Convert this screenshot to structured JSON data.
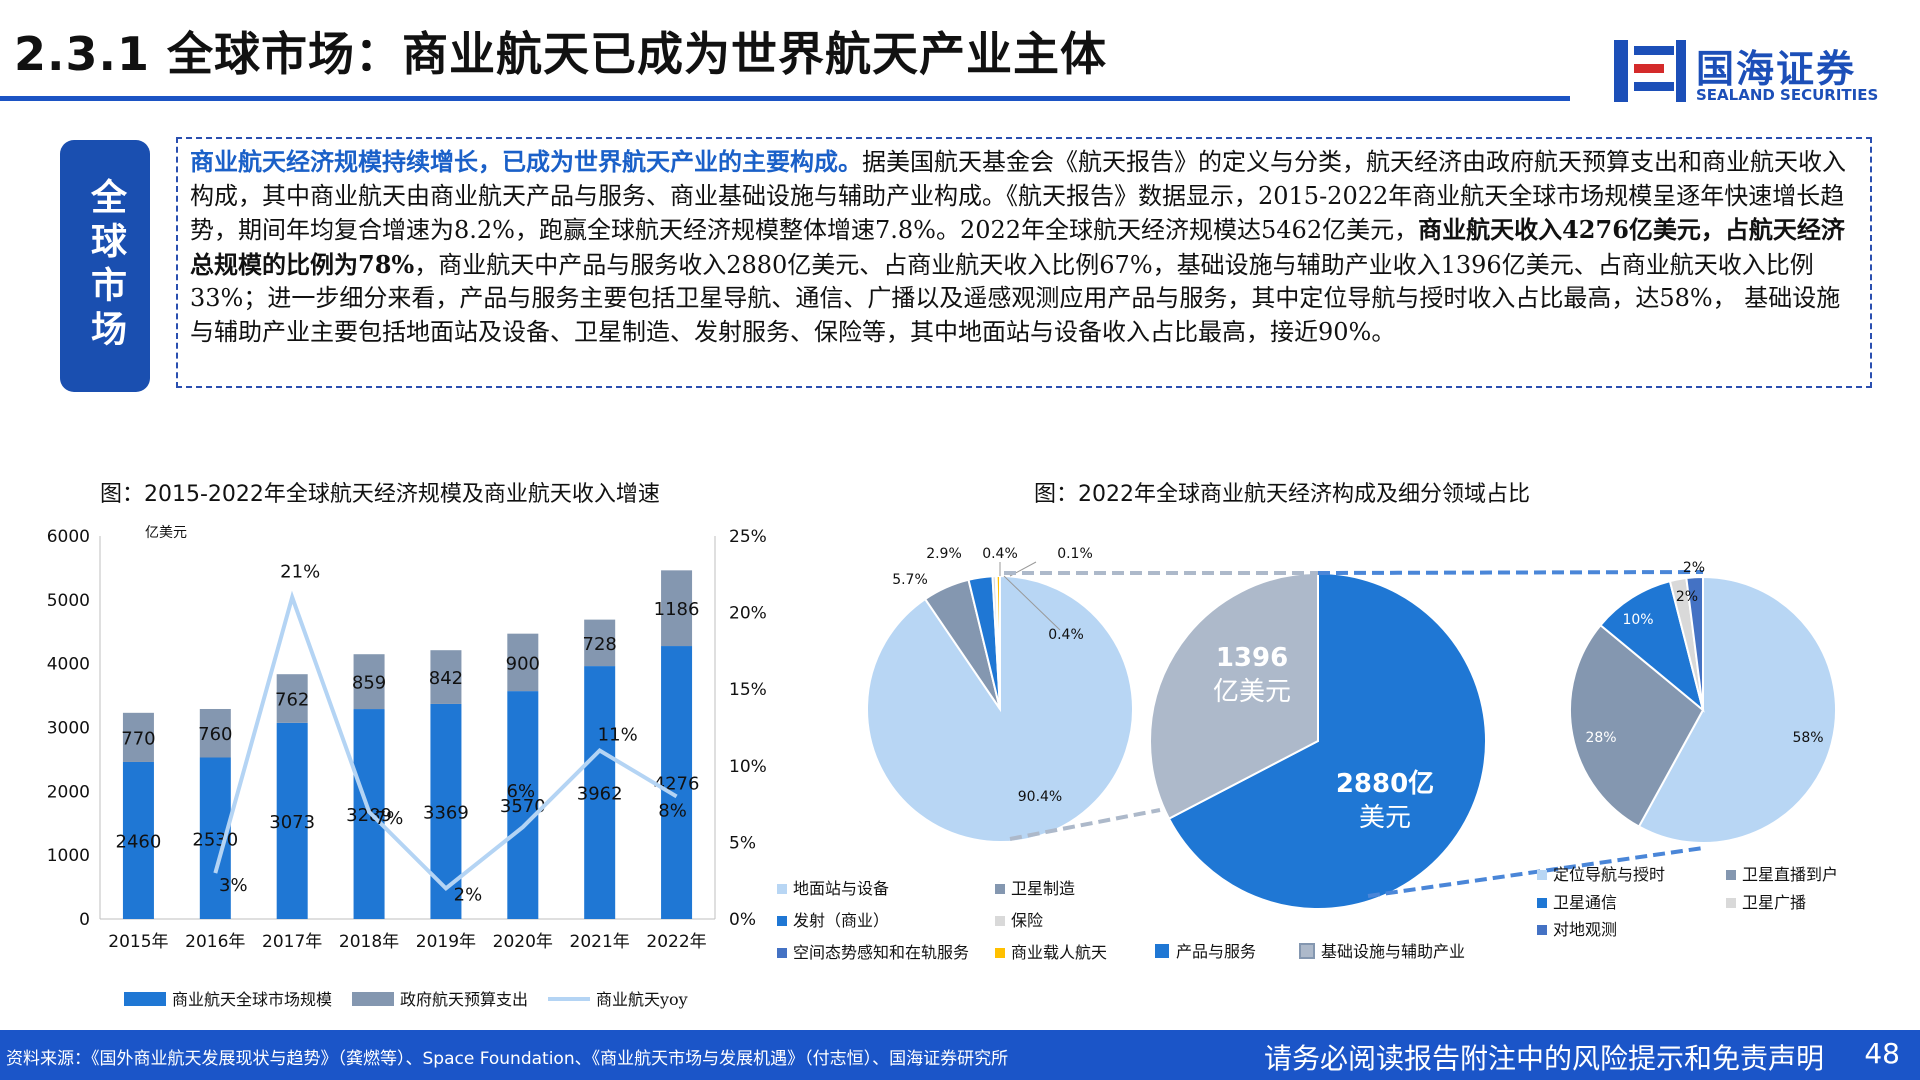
{
  "header": {
    "title": "2.3.1 全球市场：商业航天已成为世界航天产业主体",
    "logo_cn": "国海证券",
    "logo_en": "SEALAND SECURITIES"
  },
  "section": {
    "tab_label": "全球市场",
    "paragraph": {
      "lead": "商业航天经济规模持续增长，已成为世界航天产业的主要构成。",
      "part1": "据美国航天基金会《航天报告》的定义与分类，航天经济由政府航天预算支出和商业航天收入构成，其中商业航天由商业航天产品与服务、商业基础设施与辅助产业构成。《航天报告》数据显示，2015-2022年商业航天全球市场规模呈逐年快速增长趋势，期间年均复合增速为8.2%，跑赢全球航天经济规模整体增速7.8%。2022年全球航天经济规模达5462亿美元，",
      "bold": "商业航天收入4276亿美元，占航天经济总规模的比例为78%",
      "part2": "，商业航天中产品与服务收入2880亿美元、占商业航天收入比例67%，基础设施与辅助产业收入1396亿美元、占商业航天收入比例33%；进一步细分来看，产品与服务主要包括卫星导航、通信、广播以及遥感观测应用产品与服务，其中定位导航与授时收入占比最高，达58%， 基础设施与辅助产业主要包括地面站及设备、卫星制造、发射服务、保险等，其中地面站与设备收入占比最高，接近90%。"
    }
  },
  "chart_left_title": "图：2015-2022年全球航天经济规模及商业航天收入增速",
  "chart_right_title": "图：2022年全球商业航天经济构成及细分领域占比",
  "chart_data": [
    {
      "type": "bar",
      "stacked": true,
      "categories": [
        "2015年",
        "2016年",
        "2017年",
        "2018年",
        "2019年",
        "2020年",
        "2021年",
        "2022年"
      ],
      "unit_label": "亿美元",
      "series": [
        {
          "name": "商业航天全球市场规模",
          "values": [
            2460,
            2530,
            3073,
            3289,
            3369,
            3570,
            3962,
            4276
          ],
          "color": "#1f77d4"
        },
        {
          "name": "政府航天预算支出",
          "values": [
            770,
            760,
            762,
            859,
            842,
            900,
            728,
            1186
          ],
          "color": "#8497b0"
        }
      ],
      "line_series": {
        "name": "商业航天yoy",
        "x": [
          "2016年",
          "2017年",
          "2018年",
          "2019年",
          "2020年",
          "2021年",
          "2022年"
        ],
        "values": [
          3,
          21,
          7,
          2,
          6,
          11,
          8
        ],
        "labels": [
          "3%",
          "21%",
          "7%",
          "2%",
          "6%",
          "11%",
          "8%"
        ],
        "color": "#b4d4f4"
      },
      "y_left": {
        "min": 0,
        "max": 6000,
        "ticks": [
          "0",
          "1000",
          "2000",
          "3000",
          "4000",
          "5000",
          "6000"
        ]
      },
      "y_right": {
        "min": 0,
        "max": 25,
        "ticks": [
          "0%",
          "5%",
          "10%",
          "15%",
          "20%",
          "25%"
        ]
      },
      "legend_position": "bottom"
    },
    {
      "type": "pie",
      "name_hint": "基础设施与辅助产业细分",
      "slices": [
        {
          "label": "地面站与设备",
          "value": 90.4,
          "text": "90.4%",
          "color": "#b8d6f4"
        },
        {
          "label": "卫星制造",
          "value": 5.7,
          "text": "5.7%",
          "color": "#8497b0"
        },
        {
          "label": "发射（商业）",
          "value": 2.9,
          "text": "2.9%",
          "color": "#1f77d4"
        },
        {
          "label": "保险",
          "value": 0.4,
          "text": "0.4%",
          "color": "#d9d9d9"
        },
        {
          "label": "空间态势感知和在轨服务",
          "value": 0.1,
          "text": "0.1%",
          "color": "#4472c4"
        },
        {
          "label": "商业载人航天",
          "value": 0.4,
          "text": "0.4%",
          "color": "#ffc000"
        }
      ]
    },
    {
      "type": "pie",
      "slices": [
        {
          "label": "产品与服务",
          "value": 2880,
          "text1": "2880亿",
          "text2": "美元",
          "color": "#1f77d4"
        },
        {
          "label": "基础设施与辅助产业",
          "value": 1396,
          "text1": "1396",
          "text2": "亿美元",
          "color": "#adb9ca"
        }
      ]
    },
    {
      "type": "pie",
      "slices": [
        {
          "label": "定位导航与授时",
          "value": 58,
          "text": "58%",
          "color": "#b8d6f4"
        },
        {
          "label": "卫星直播到户",
          "value": 28,
          "text": "28%",
          "color": "#8497b0"
        },
        {
          "label": "卫星通信",
          "value": 10,
          "text": "10%",
          "color": "#1f77d4"
        },
        {
          "label": "卫星广播",
          "value": 2,
          "text": "2%",
          "color": "#d9d9d9"
        },
        {
          "label": "对地观测",
          "value": 2,
          "text": "2%",
          "color": "#4472c4"
        }
      ]
    }
  ],
  "legends": {
    "left": [
      "商业航天全球市场规模",
      "政府航天预算支出",
      "商业航天yoy"
    ],
    "pie1": [
      "地面站与设备",
      "卫星制造",
      "发射（商业）",
      "保险",
      "空间态势感知和在轨服务",
      "商业载人航天"
    ],
    "pie2": [
      "产品与服务",
      "基础设施与辅助产业"
    ],
    "pie3": [
      "定位导航与授时",
      "卫星直播到户",
      "卫星通信",
      "卫星广播",
      "对地观测"
    ]
  },
  "footer": {
    "source": "资料来源：《国外商业航天发展现状与趋势》（龚燃等）、Space Foundation、《商业航天市场与发展机遇》（付志恒）、国海证券研究所",
    "disclaimer": "请务必阅读报告附注中的风险提示和免责声明",
    "page": "48"
  }
}
